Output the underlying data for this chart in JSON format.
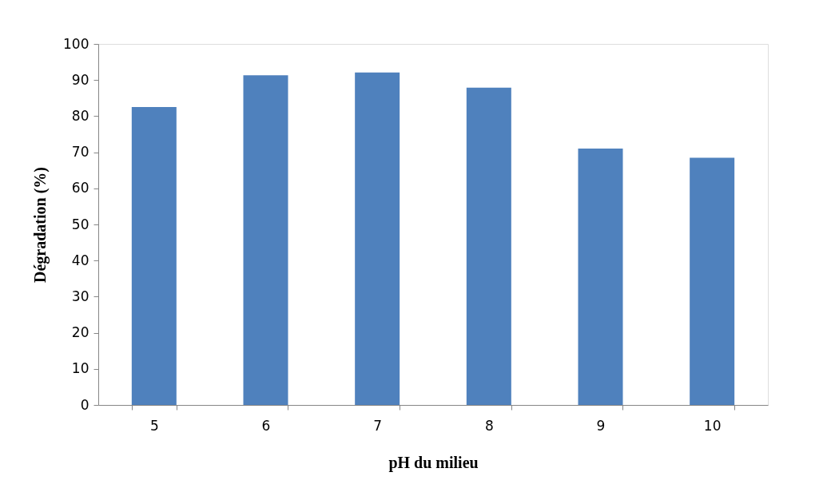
{
  "chart_data": {
    "type": "bar",
    "xlabel": "pH du milieu",
    "ylabel": "Dégradation (%)",
    "categories": [
      "5",
      "6",
      "7",
      "8",
      "9",
      "10"
    ],
    "values": [
      82.5,
      91.3,
      92.1,
      87.9,
      71.0,
      68.5
    ],
    "color": "#4f81bd",
    "ylim": [
      0,
      100
    ],
    "yticks": [
      0,
      10,
      20,
      30,
      40,
      50,
      60,
      70,
      80,
      90,
      100
    ],
    "grid": false
  }
}
